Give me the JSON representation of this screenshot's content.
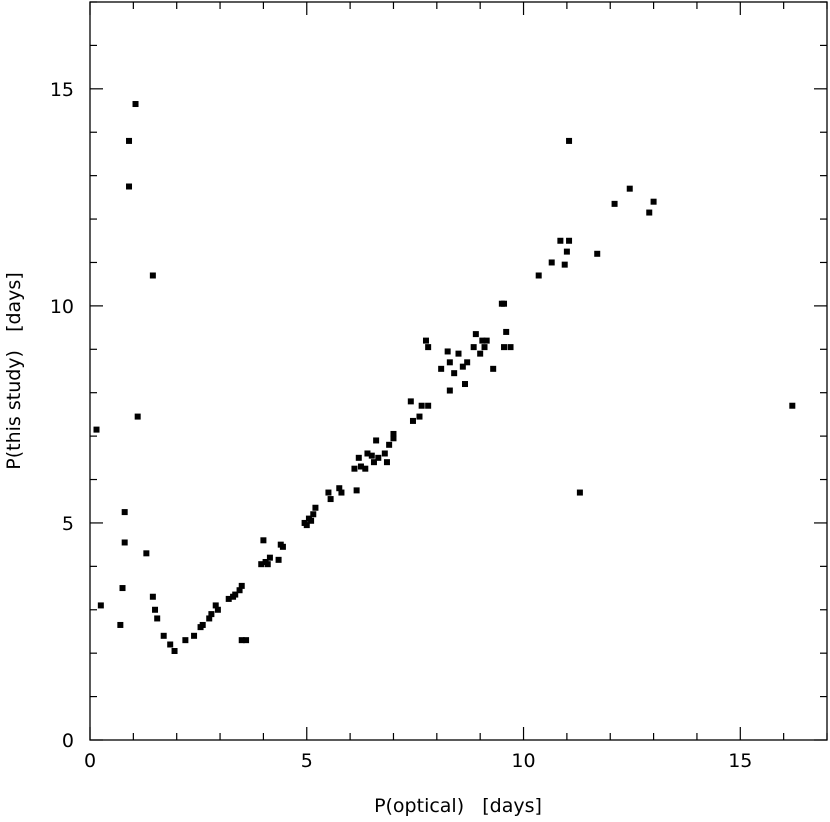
{
  "chart_data": {
    "type": "scatter",
    "title": "",
    "xlabel": "P(optical)   [days]",
    "ylabel": "P(this study)   [days]",
    "xlim": [
      0,
      17
    ],
    "ylim": [
      0,
      17
    ],
    "x_ticks": [
      0,
      5,
      10,
      15
    ],
    "x_tick_labels": [
      "0",
      "5",
      "10",
      "15"
    ],
    "y_ticks": [
      0,
      5,
      10,
      15
    ],
    "y_tick_labels": [
      "0",
      "5",
      "10",
      "15"
    ],
    "x_minor_step": 1,
    "y_minor_step": 1,
    "grid": false,
    "marker": "square",
    "color": "#000000",
    "points": [
      [
        0.15,
        7.15
      ],
      [
        0.25,
        3.1
      ],
      [
        0.7,
        2.65
      ],
      [
        0.75,
        3.5
      ],
      [
        0.8,
        4.55
      ],
      [
        0.8,
        5.25
      ],
      [
        0.9,
        13.8
      ],
      [
        0.9,
        12.75
      ],
      [
        1.05,
        14.65
      ],
      [
        1.1,
        7.45
      ],
      [
        1.3,
        4.3
      ],
      [
        1.45,
        10.7
      ],
      [
        1.45,
        3.3
      ],
      [
        1.5,
        3.0
      ],
      [
        1.55,
        2.8
      ],
      [
        1.7,
        2.4
      ],
      [
        1.85,
        2.2
      ],
      [
        1.95,
        2.05
      ],
      [
        2.2,
        2.3
      ],
      [
        2.4,
        2.4
      ],
      [
        2.55,
        2.6
      ],
      [
        2.6,
        2.65
      ],
      [
        2.75,
        2.8
      ],
      [
        2.8,
        2.9
      ],
      [
        2.9,
        3.1
      ],
      [
        2.95,
        3.0
      ],
      [
        3.2,
        3.25
      ],
      [
        3.3,
        3.3
      ],
      [
        3.35,
        3.35
      ],
      [
        3.45,
        3.45
      ],
      [
        3.5,
        3.55
      ],
      [
        3.5,
        2.3
      ],
      [
        3.6,
        2.3
      ],
      [
        3.95,
        4.05
      ],
      [
        4.0,
        4.6
      ],
      [
        4.05,
        4.1
      ],
      [
        4.1,
        4.05
      ],
      [
        4.15,
        4.2
      ],
      [
        4.35,
        4.15
      ],
      [
        4.4,
        4.5
      ],
      [
        4.45,
        4.45
      ],
      [
        4.95,
        5.0
      ],
      [
        5.0,
        4.95
      ],
      [
        5.05,
        5.1
      ],
      [
        5.1,
        5.05
      ],
      [
        5.15,
        5.2
      ],
      [
        5.2,
        5.35
      ],
      [
        5.5,
        5.7
      ],
      [
        5.55,
        5.55
      ],
      [
        5.75,
        5.8
      ],
      [
        5.8,
        5.7
      ],
      [
        6.1,
        6.25
      ],
      [
        6.15,
        5.75
      ],
      [
        6.2,
        6.5
      ],
      [
        6.25,
        6.3
      ],
      [
        6.35,
        6.25
      ],
      [
        6.4,
        6.6
      ],
      [
        6.5,
        6.55
      ],
      [
        6.55,
        6.4
      ],
      [
        6.6,
        6.9
      ],
      [
        6.65,
        6.5
      ],
      [
        6.8,
        6.6
      ],
      [
        6.85,
        6.4
      ],
      [
        6.9,
        6.8
      ],
      [
        7.0,
        6.95
      ],
      [
        7.0,
        7.05
      ],
      [
        7.4,
        7.8
      ],
      [
        7.45,
        7.35
      ],
      [
        7.6,
        7.45
      ],
      [
        7.65,
        7.7
      ],
      [
        7.75,
        9.2
      ],
      [
        7.8,
        7.7
      ],
      [
        7.8,
        9.05
      ],
      [
        8.1,
        8.55
      ],
      [
        8.25,
        8.95
      ],
      [
        8.3,
        8.7
      ],
      [
        8.3,
        8.05
      ],
      [
        8.4,
        8.45
      ],
      [
        8.5,
        8.9
      ],
      [
        8.6,
        8.6
      ],
      [
        8.65,
        8.2
      ],
      [
        8.7,
        8.7
      ],
      [
        8.85,
        9.05
      ],
      [
        8.9,
        9.35
      ],
      [
        9.0,
        8.9
      ],
      [
        9.05,
        9.2
      ],
      [
        9.1,
        9.05
      ],
      [
        9.15,
        9.2
      ],
      [
        9.3,
        8.55
      ],
      [
        9.5,
        10.05
      ],
      [
        9.55,
        9.05
      ],
      [
        9.55,
        10.05
      ],
      [
        9.6,
        9.4
      ],
      [
        9.7,
        9.05
      ],
      [
        10.35,
        10.7
      ],
      [
        10.65,
        11.0
      ],
      [
        10.85,
        11.5
      ],
      [
        10.95,
        10.95
      ],
      [
        11.0,
        11.25
      ],
      [
        11.05,
        11.5
      ],
      [
        11.05,
        13.8
      ],
      [
        11.3,
        5.7
      ],
      [
        11.7,
        11.2
      ],
      [
        12.1,
        12.35
      ],
      [
        12.45,
        12.7
      ],
      [
        12.9,
        12.15
      ],
      [
        13.0,
        12.4
      ],
      [
        16.2,
        7.7
      ]
    ]
  }
}
